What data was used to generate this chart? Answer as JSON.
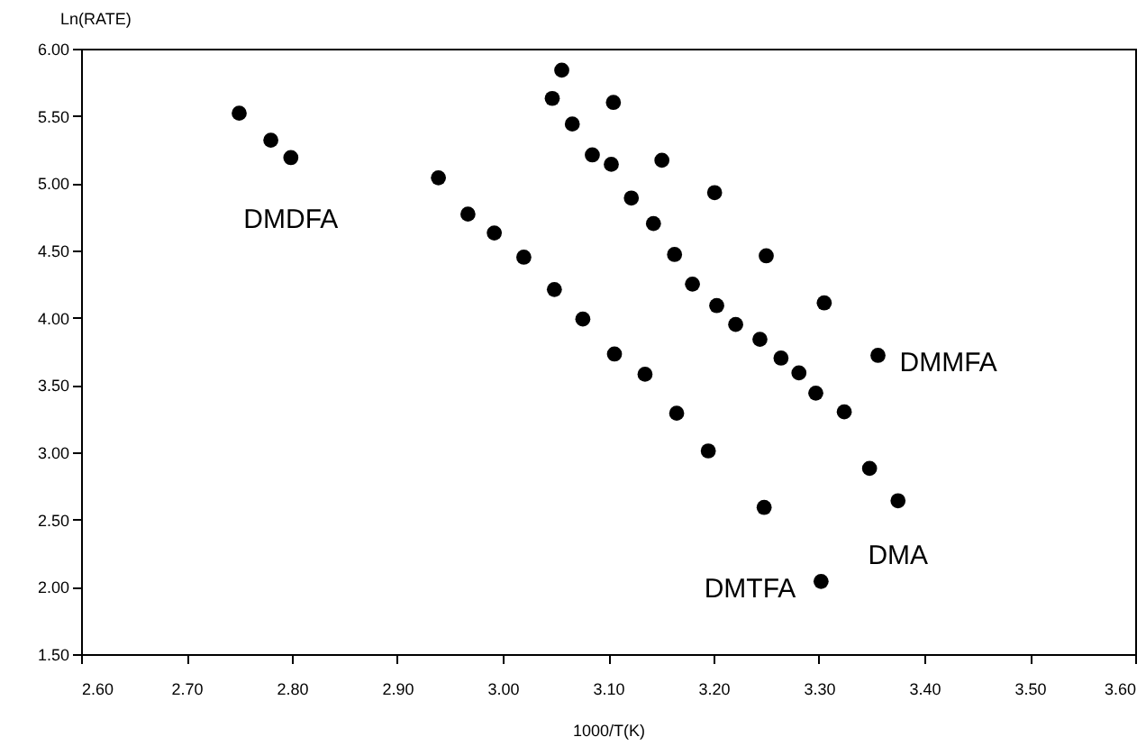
{
  "chart_data": {
    "type": "scatter",
    "xlabel": "1000/T(K)",
    "ylabel": "Ln(RATE)",
    "marker": "circle",
    "grid": false,
    "xlim": [
      2.6,
      3.6
    ],
    "ylim": [
      1.5,
      6.0
    ],
    "xticks": [
      {
        "value": 2.6,
        "label": "2.60"
      },
      {
        "value": 2.7,
        "label": "2.70"
      },
      {
        "value": 2.8,
        "label": "2.80"
      },
      {
        "value": 2.9,
        "label": "2.90"
      },
      {
        "value": 3.0,
        "label": "3.00"
      },
      {
        "value": 3.1,
        "label": "3.10"
      },
      {
        "value": 3.2,
        "label": "3.20"
      },
      {
        "value": 3.3,
        "label": "3.30"
      },
      {
        "value": 3.4,
        "label": "3.40"
      },
      {
        "value": 3.5,
        "label": "3.50"
      },
      {
        "value": 3.6,
        "label": "3.60"
      }
    ],
    "yticks": [
      {
        "value": 1.5,
        "label": "1.50"
      },
      {
        "value": 2.0,
        "label": "2.00"
      },
      {
        "value": 2.5,
        "label": "2.50"
      },
      {
        "value": 3.0,
        "label": "3.00"
      },
      {
        "value": 3.5,
        "label": "3.50"
      },
      {
        "value": 4.0,
        "label": "4.00"
      },
      {
        "value": 4.5,
        "label": "4.50"
      },
      {
        "value": 5.0,
        "label": "5.00"
      },
      {
        "value": 5.5,
        "label": "5.50"
      },
      {
        "value": 6.0,
        "label": "6.00"
      }
    ],
    "series": [
      {
        "name": "DMDFA",
        "color": "#000000",
        "x": [
          2.75,
          2.78,
          2.799
        ],
        "values": [
          5.52,
          5.32,
          5.19
        ]
      },
      {
        "name": "DMMFA",
        "color": "#000000",
        "x": [
          3.056,
          3.105,
          3.151,
          3.201,
          3.25,
          3.305,
          3.356
        ],
        "values": [
          5.84,
          5.6,
          5.17,
          4.93,
          4.46,
          4.11,
          3.72
        ]
      },
      {
        "name": "DMA",
        "color": "#000000",
        "x": [
          3.047,
          3.066,
          3.085,
          3.103,
          3.122,
          3.143,
          3.163,
          3.18,
          3.203,
          3.221,
          3.244,
          3.264,
          3.281,
          3.297,
          3.324,
          3.348,
          3.375
        ],
        "values": [
          5.63,
          5.44,
          5.21,
          5.14,
          4.89,
          4.7,
          4.47,
          4.25,
          4.09,
          3.95,
          3.84,
          3.7,
          3.59,
          3.44,
          3.3,
          2.88,
          2.64
        ]
      },
      {
        "name": "DMTFA",
        "color": "#000000",
        "x": [
          2.939,
          2.967,
          2.992,
          3.02,
          3.049,
          3.076,
          3.106,
          3.135,
          3.165,
          3.195,
          3.248,
          3.302
        ],
        "values": [
          5.04,
          4.77,
          4.63,
          4.45,
          4.21,
          3.99,
          3.73,
          3.58,
          3.29,
          3.01,
          2.59,
          2.04
        ]
      }
    ]
  }
}
